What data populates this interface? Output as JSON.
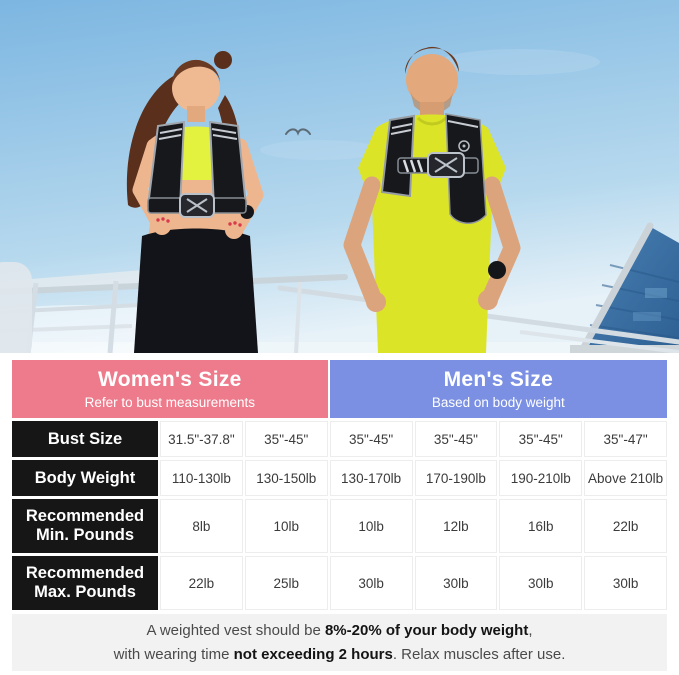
{
  "photo": {
    "description": "Woman and man jogging outdoors under a blue sky, both wearing black weighted vests with reflective trim over neon yellow sportswear; a glass building and railing in the background"
  },
  "table": {
    "headers": [
      {
        "title": "Women's Size",
        "subtitle": "Refer to bust measurements",
        "color": "#ee7b8c"
      },
      {
        "title": "Men's Size",
        "subtitle": "Based on body weight",
        "color": "#7b90e2"
      }
    ],
    "rows": [
      {
        "label": "Bust Size",
        "values": [
          "31.5\"-37.8\"",
          "35\"-45\"",
          "35\"-45\"",
          "35\"-45\"",
          "35\"-45\"",
          "35\"-47\""
        ]
      },
      {
        "label": "Body Weight",
        "values": [
          "110-130lb",
          "130-150lb",
          "130-170lb",
          "170-190lb",
          "190-210lb",
          "Above 210lb"
        ]
      },
      {
        "label": "Recommended Min. Pounds",
        "values": [
          "8lb",
          "10lb",
          "10lb",
          "12lb",
          "16lb",
          "22lb"
        ]
      },
      {
        "label": "Recommended Max. Pounds",
        "values": [
          "22lb",
          "25lb",
          "30lb",
          "30lb",
          "30lb",
          "30lb"
        ]
      }
    ]
  },
  "footnote": {
    "lines": [
      [
        {
          "t": "A weighted vest should be ",
          "b": false
        },
        {
          "t": "8%-20% of your body weight",
          "b": true
        },
        {
          "t": ",",
          "b": false
        }
      ],
      [
        {
          "t": "with wearing time ",
          "b": false
        },
        {
          "t": "not exceeding 2 hours",
          "b": true
        },
        {
          "t": ". Relax muscles after use.",
          "b": false
        }
      ]
    ]
  },
  "colors": {
    "womens_header": "#ee7b8c",
    "mens_header": "#7b90e2",
    "label_cell": "#161616",
    "note_background": "#f2f2f2",
    "vest": "#17181c",
    "sportswear": "#dde426"
  }
}
